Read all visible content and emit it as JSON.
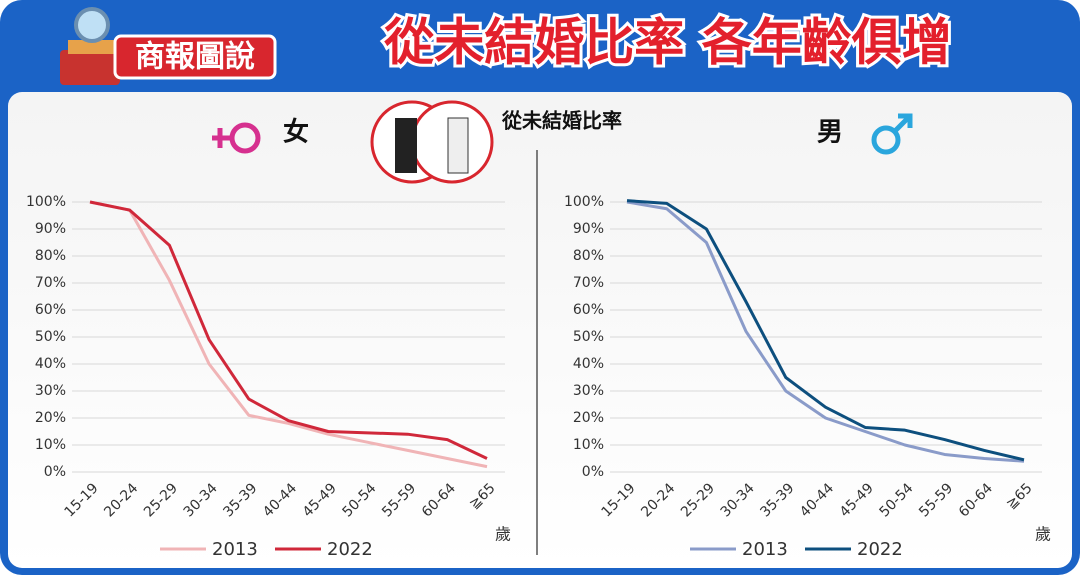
{
  "header": {
    "badge": "商報圖說",
    "title": "從未結婚比率 各年齡俱增",
    "subtitle": "從未結婚比率"
  },
  "chart_data": [
    {
      "type": "line",
      "title": "女",
      "x_label": "歲",
      "categories": [
        "15-19",
        "20-24",
        "25-29",
        "30-34",
        "35-39",
        "40-44",
        "45-49",
        "50-54",
        "55-59",
        "60-64",
        "≧65"
      ],
      "series": [
        {
          "name": "2013",
          "color": "#f0b4b6",
          "values": [
            100,
            97,
            71,
            40,
            21,
            18,
            14,
            11,
            8,
            5,
            2
          ]
        },
        {
          "name": "2022",
          "color": "#d0283a",
          "values": [
            100,
            97,
            84,
            49,
            27,
            19,
            15,
            14.5,
            14,
            12,
            5
          ]
        }
      ],
      "ylim": [
        0,
        100
      ],
      "yticks": [
        {
          "value": 0,
          "label": "0%"
        },
        {
          "value": 10,
          "label": "10%"
        },
        {
          "value": 20,
          "label": "20%"
        },
        {
          "value": 30,
          "label": "30%"
        },
        {
          "value": 40,
          "label": "40%"
        },
        {
          "value": 50,
          "label": "50%"
        },
        {
          "value": 60,
          "label": "60%"
        },
        {
          "value": 70,
          "label": "70%"
        },
        {
          "value": 80,
          "label": "80%"
        },
        {
          "value": 90,
          "label": "90%"
        },
        {
          "value": 100,
          "label": "100%"
        }
      ],
      "grid": true
    },
    {
      "type": "line",
      "title": "男",
      "x_label": "歲",
      "categories": [
        "15-19",
        "20-24",
        "25-29",
        "30-34",
        "35-39",
        "40-44",
        "45-49",
        "50-54",
        "55-59",
        "60-64",
        "≧65"
      ],
      "series": [
        {
          "name": "2013",
          "color": "#8a9bc9",
          "values": [
            100,
            97.5,
            85,
            52,
            30,
            20,
            15,
            10,
            6.5,
            5,
            4
          ]
        },
        {
          "name": "2022",
          "color": "#0d4f7e",
          "values": [
            100.5,
            99.5,
            90,
            63,
            35,
            24,
            16.5,
            15.5,
            12,
            8,
            4.5
          ]
        }
      ],
      "ylim": [
        0,
        100
      ],
      "yticks": [
        {
          "value": 0,
          "label": "0%"
        },
        {
          "value": 10,
          "label": "10%"
        },
        {
          "value": 20,
          "label": "20%"
        },
        {
          "value": 30,
          "label": "30%"
        },
        {
          "value": 40,
          "label": "40%"
        },
        {
          "value": 50,
          "label": "50%"
        },
        {
          "value": 60,
          "label": "60%"
        },
        {
          "value": 70,
          "label": "70%"
        },
        {
          "value": 80,
          "label": "80%"
        },
        {
          "value": 90,
          "label": "90%"
        },
        {
          "value": 100,
          "label": "100%"
        }
      ],
      "grid": true
    }
  ]
}
